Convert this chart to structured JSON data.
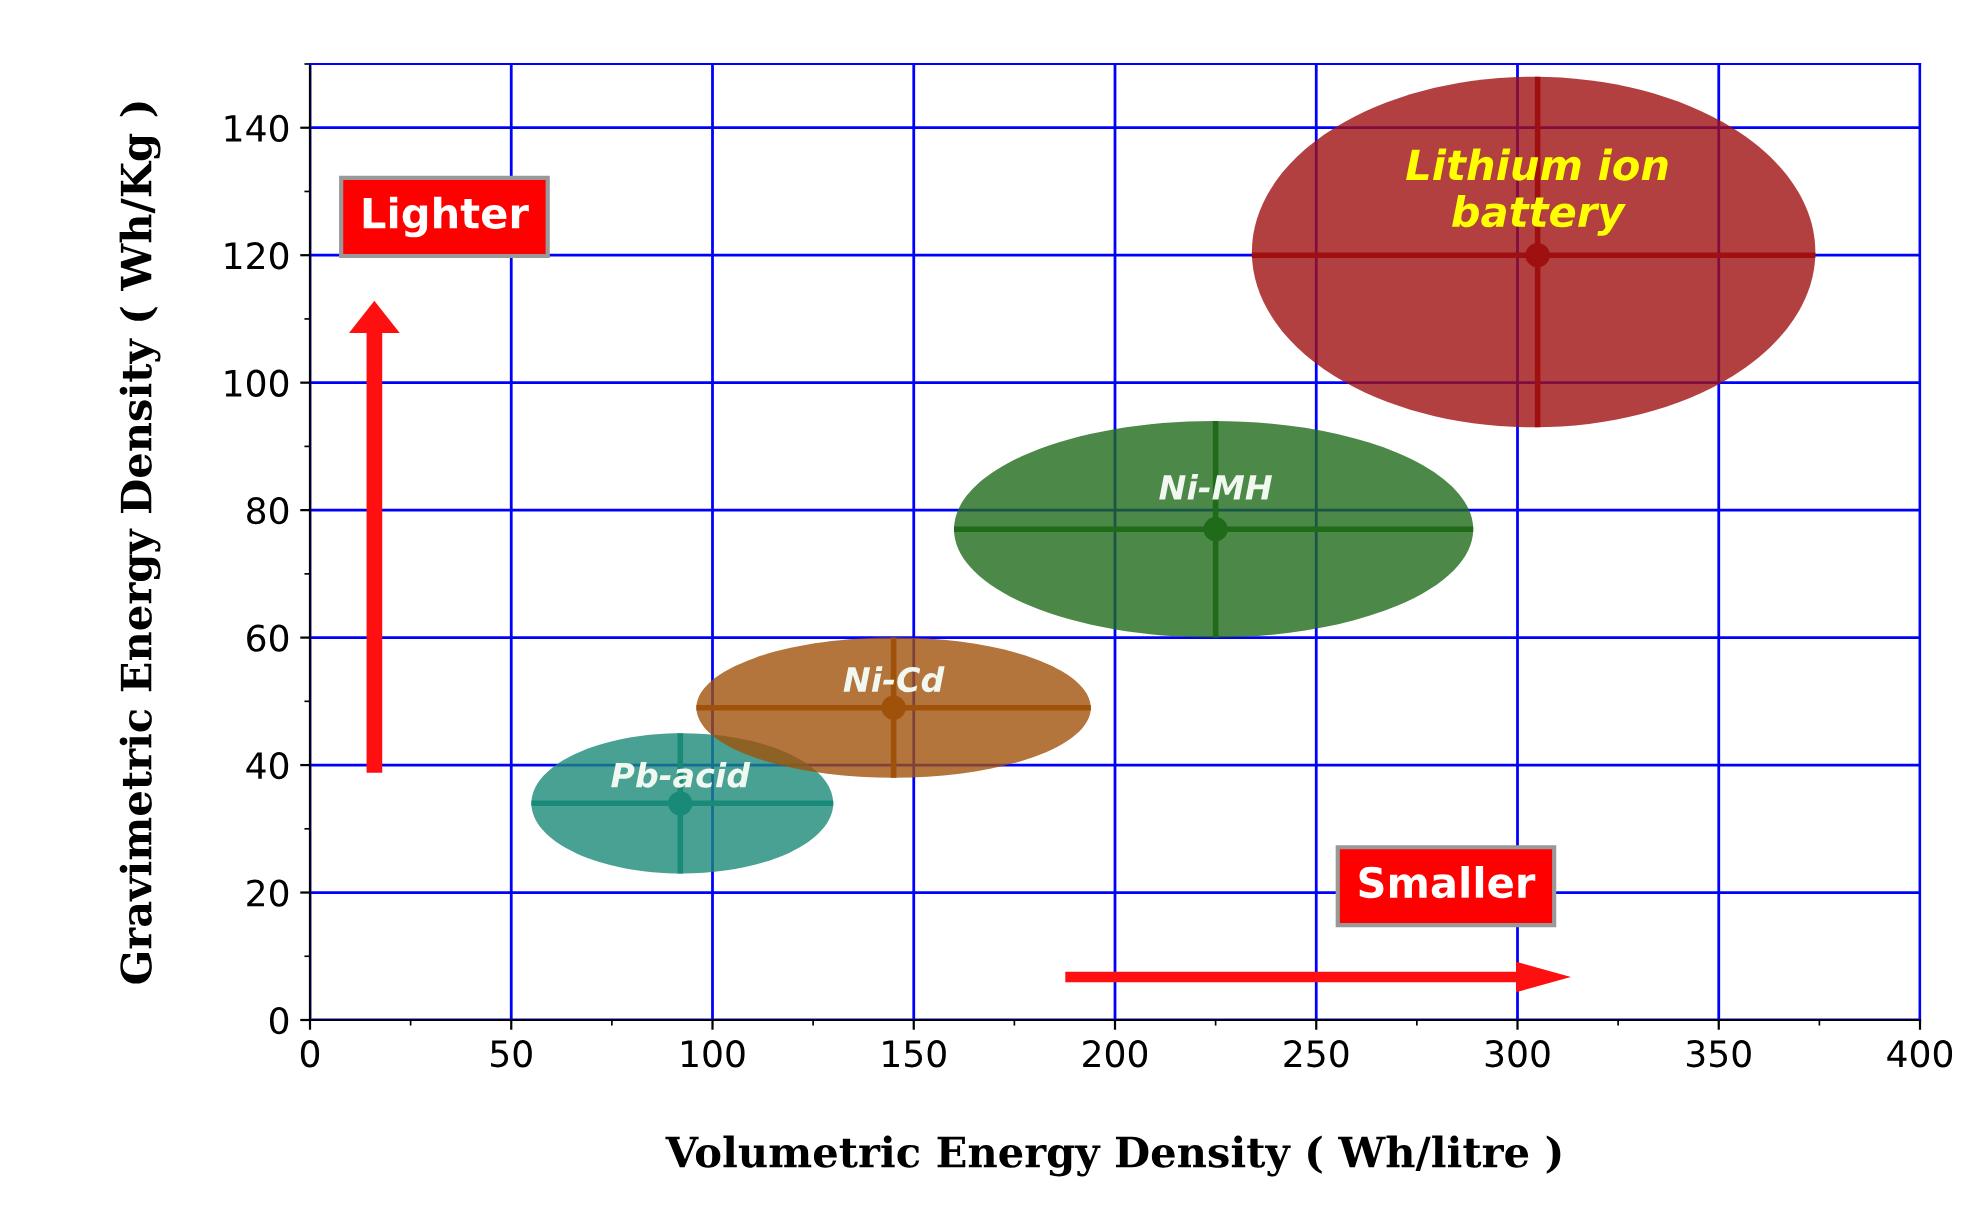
{
  "chart_data": {
    "type": "scatter",
    "xlabel": "Volumetric Energy Density ( Wh/litre )",
    "ylabel": "Gravimetric Energy Density ( Wh/Kg )",
    "xlim": [
      0,
      400
    ],
    "ylim": [
      0,
      150
    ],
    "xticks": [
      0,
      50,
      100,
      150,
      200,
      250,
      300,
      350,
      400
    ],
    "yticks": [
      0,
      20,
      40,
      60,
      80,
      100,
      120,
      140
    ],
    "grid": true,
    "legend": false,
    "marker": "circle",
    "series": [
      {
        "name": "Pb-acid",
        "color": "#1a8a78",
        "x": [
          92
        ],
        "values": [
          34
        ],
        "xerrors": [
          [
            55,
            130
          ]
        ],
        "errors": [
          [
            23,
            45
          ]
        ]
      },
      {
        "name": "Ni-Cd",
        "color": "#a0520a",
        "x": [
          145
        ],
        "values": [
          49
        ],
        "xerrors": [
          [
            96,
            194
          ]
        ],
        "errors": [
          [
            38,
            60
          ]
        ]
      },
      {
        "name": "Ni-MH",
        "color": "#1f6b1a",
        "x": [
          225
        ],
        "values": [
          77
        ],
        "xerrors": [
          [
            160,
            289
          ]
        ],
        "errors": [
          [
            60,
            94
          ]
        ]
      },
      {
        "name": "Lithium ion\nbattery",
        "color": "#a01010",
        "x": [
          305
        ],
        "values": [
          120
        ],
        "xerrors": [
          [
            234,
            374
          ]
        ],
        "errors": [
          [
            93,
            148
          ]
        ]
      }
    ],
    "annotations": [
      "Lighter",
      "Smaller"
    ]
  }
}
